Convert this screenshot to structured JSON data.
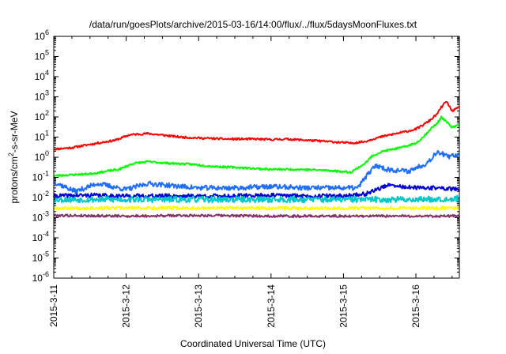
{
  "chart_data": {
    "type": "line",
    "title": "/data/run/goesPlots/archive/2015-03-16/14:00/flux/../flux/5daysMoonFluxes.txt",
    "xlabel": "Coordinated Universal Time (UTC)",
    "ylabel_parts": [
      "protons/cm",
      "2",
      "-s-sr-MeV"
    ],
    "y_scale": "log",
    "ylim_exponent": [
      -6,
      6
    ],
    "y_tick_exponents": [
      -6,
      -5,
      -4,
      -3,
      -2,
      -1,
      0,
      1,
      2,
      3,
      4,
      5,
      6
    ],
    "x_unit": "days since 2015-3-11 00:00 UTC",
    "xlim_days": [
      0,
      5.6
    ],
    "x_ticks": [
      {
        "day": 0,
        "label": "2015-3-11"
      },
      {
        "day": 1,
        "label": "2015-3-12"
      },
      {
        "day": 2,
        "label": "2015-3-13"
      },
      {
        "day": 3,
        "label": "2015-3-14"
      },
      {
        "day": 4,
        "label": "2015-3-15"
      },
      {
        "day": 5,
        "label": "2015-3-16"
      }
    ],
    "series": [
      {
        "color": "#ff0000",
        "noise": 0.05,
        "seed": 11,
        "points": [
          [
            0,
            2.5
          ],
          [
            0.25,
            3
          ],
          [
            0.6,
            5
          ],
          [
            0.85,
            7
          ],
          [
            1.05,
            13
          ],
          [
            1.3,
            15
          ],
          [
            1.55,
            12
          ],
          [
            1.75,
            10
          ],
          [
            2.0,
            9
          ],
          [
            2.4,
            8
          ],
          [
            2.8,
            8
          ],
          [
            3.0,
            7.5
          ],
          [
            3.2,
            8
          ],
          [
            3.5,
            7
          ],
          [
            3.8,
            6
          ],
          [
            4.1,
            5
          ],
          [
            4.3,
            6
          ],
          [
            4.4,
            8
          ],
          [
            4.6,
            12
          ],
          [
            4.9,
            20
          ],
          [
            5.0,
            25
          ],
          [
            5.1,
            40
          ],
          [
            5.2,
            70
          ],
          [
            5.3,
            150
          ],
          [
            5.35,
            300
          ],
          [
            5.42,
            600
          ],
          [
            5.5,
            200
          ],
          [
            5.6,
            300
          ]
        ]
      },
      {
        "color": "#00ff00",
        "noise": 0.05,
        "seed": 23,
        "points": [
          [
            0,
            0.12
          ],
          [
            0.5,
            0.15
          ],
          [
            0.9,
            0.25
          ],
          [
            1.1,
            0.5
          ],
          [
            1.3,
            0.6
          ],
          [
            1.6,
            0.5
          ],
          [
            1.9,
            0.45
          ],
          [
            2.2,
            0.35
          ],
          [
            2.6,
            0.3
          ],
          [
            3.0,
            0.25
          ],
          [
            3.4,
            0.25
          ],
          [
            3.8,
            0.22
          ],
          [
            4.1,
            0.18
          ],
          [
            4.3,
            0.5
          ],
          [
            4.4,
            1.2
          ],
          [
            4.55,
            2
          ],
          [
            4.8,
            3
          ],
          [
            5.0,
            5
          ],
          [
            5.1,
            10
          ],
          [
            5.2,
            25
          ],
          [
            5.3,
            50
          ],
          [
            5.35,
            100
          ],
          [
            5.5,
            30
          ],
          [
            5.6,
            40
          ]
        ]
      },
      {
        "color": "#1e6eff",
        "noise": 0.12,
        "seed": 37,
        "points": [
          [
            0,
            0.06
          ],
          [
            0.3,
            0.02
          ],
          [
            0.6,
            0.05
          ],
          [
            1.0,
            0.025
          ],
          [
            1.3,
            0.05
          ],
          [
            1.6,
            0.04
          ],
          [
            2.0,
            0.03
          ],
          [
            2.5,
            0.03
          ],
          [
            3.0,
            0.035
          ],
          [
            3.5,
            0.03
          ],
          [
            4.0,
            0.03
          ],
          [
            4.2,
            0.03
          ],
          [
            4.3,
            0.1
          ],
          [
            4.45,
            0.4
          ],
          [
            4.6,
            0.25
          ],
          [
            4.9,
            0.2
          ],
          [
            5.0,
            0.3
          ],
          [
            5.15,
            0.5
          ],
          [
            5.3,
            2
          ],
          [
            5.45,
            1
          ],
          [
            5.6,
            1.5
          ]
        ]
      },
      {
        "color": "#0000dd",
        "noise": 0.1,
        "seed": 41,
        "points": [
          [
            0,
            0.012
          ],
          [
            0.5,
            0.013
          ],
          [
            1.0,
            0.012
          ],
          [
            1.5,
            0.012
          ],
          [
            2.0,
            0.012
          ],
          [
            2.5,
            0.012
          ],
          [
            3.0,
            0.013
          ],
          [
            3.5,
            0.012
          ],
          [
            4.0,
            0.012
          ],
          [
            4.3,
            0.015
          ],
          [
            4.6,
            0.04
          ],
          [
            5.0,
            0.03
          ],
          [
            5.3,
            0.03
          ],
          [
            5.6,
            0.025
          ]
        ]
      },
      {
        "color": "#00c8c8",
        "noise": 0.15,
        "seed": 53,
        "points": [
          [
            0,
            0.008
          ],
          [
            1.0,
            0.008
          ],
          [
            2.0,
            0.008
          ],
          [
            3.0,
            0.008
          ],
          [
            4.0,
            0.008
          ],
          [
            4.5,
            0.008
          ],
          [
            5.0,
            0.008
          ],
          [
            5.6,
            0.009
          ]
        ]
      },
      {
        "color": "#ffff00",
        "noise": 0.08,
        "seed": 67,
        "points": [
          [
            0,
            0.003
          ],
          [
            1.0,
            0.003
          ],
          [
            2.0,
            0.003
          ],
          [
            3.0,
            0.003
          ],
          [
            4.0,
            0.003
          ],
          [
            5.0,
            0.003
          ],
          [
            5.6,
            0.003
          ]
        ]
      },
      {
        "color": "#8b2c6b",
        "noise": 0.06,
        "seed": 79,
        "points": [
          [
            0,
            0.0013
          ],
          [
            1.0,
            0.0012
          ],
          [
            2.0,
            0.0013
          ],
          [
            3.0,
            0.0012
          ],
          [
            4.0,
            0.0012
          ],
          [
            5.0,
            0.0012
          ],
          [
            5.6,
            0.0012
          ]
        ]
      }
    ]
  }
}
